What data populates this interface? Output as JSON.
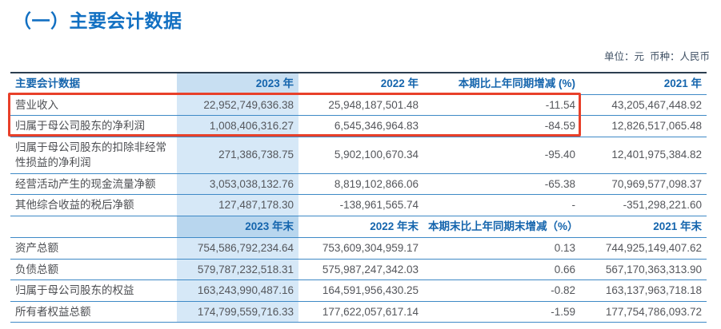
{
  "page": {
    "title": "（一）主要会计数据",
    "unit_note": "单位：元  币种：人民币"
  },
  "colors": {
    "accent_blue": "#1270c2",
    "header_text_blue": "#1565ad",
    "band_blue_body": "#d6e8f7",
    "band_blue_header": "#b8d6ee",
    "separator_blue": "#3e89c6",
    "highlight_red": "#e8402a",
    "body_text_gray": "#54565b"
  },
  "table": {
    "section1": {
      "col_label": "主要会计数据",
      "col_2023": "2023 年",
      "col_2022": "2022 年",
      "col_change": "本期比上年同期增减 (%)",
      "col_2021": "2021 年",
      "rows": [
        {
          "label": "营业收入",
          "v2023": "22,952,749,636.38",
          "v2022": "25,948,187,501.48",
          "change": "-11.54",
          "v2021": "43,205,467,448.92",
          "highlighted": true
        },
        {
          "label": "归属于母公司股东的净利润",
          "v2023": "1,008,406,316.27",
          "v2022": "6,545,346,964.83",
          "change": "-84.59",
          "v2021": "12,826,517,065.48",
          "highlighted": true
        },
        {
          "label": "归属于母公司股东的扣除非经常性损益的净利润",
          "v2023": "271,386,738.75",
          "v2022": "5,902,100,670.34",
          "change": "-95.40",
          "v2021": "12,401,975,384.82",
          "highlighted": false
        },
        {
          "label": "经营活动产生的现金流量净额",
          "v2023": "3,053,038,132.76",
          "v2022": "8,819,102,866.06",
          "change": "-65.38",
          "v2021": "70,969,577,098.37",
          "highlighted": false
        },
        {
          "label": "其他综合收益的税后净额",
          "v2023": "127,487,178.30",
          "v2022": "-138,961,565.74",
          "change": "-",
          "v2021": "-351,298,221.60",
          "highlighted": false
        }
      ]
    },
    "section2": {
      "col_label": "",
      "col_2023": "2023 年末",
      "col_2022": "2022 年末",
      "col_change": "本期末比上年同期末增减（%）",
      "col_2021": "2021 年末",
      "rows": [
        {
          "label": "资产总额",
          "v2023": "754,586,792,234.64",
          "v2022": "753,609,304,959.17",
          "change": "0.13",
          "v2021": "744,925,149,407.62",
          "highlighted": false
        },
        {
          "label": "负债总额",
          "v2023": "579,787,232,518.31",
          "v2022": "575,987,247,342.03",
          "change": "0.66",
          "v2021": "567,170,363,313.90",
          "highlighted": false
        },
        {
          "label": "归属于母公司股东的权益",
          "v2023": "163,243,990,487.16",
          "v2022": "164,591,956,430.25",
          "change": "-0.82",
          "v2021": "163,137,963,718.18",
          "highlighted": false
        },
        {
          "label": "所有者权益总额",
          "v2023": "174,799,559,716.33",
          "v2022": "177,622,057,617.14",
          "change": "-1.59",
          "v2021": "177,754,786,093.72",
          "highlighted": false
        }
      ]
    }
  }
}
